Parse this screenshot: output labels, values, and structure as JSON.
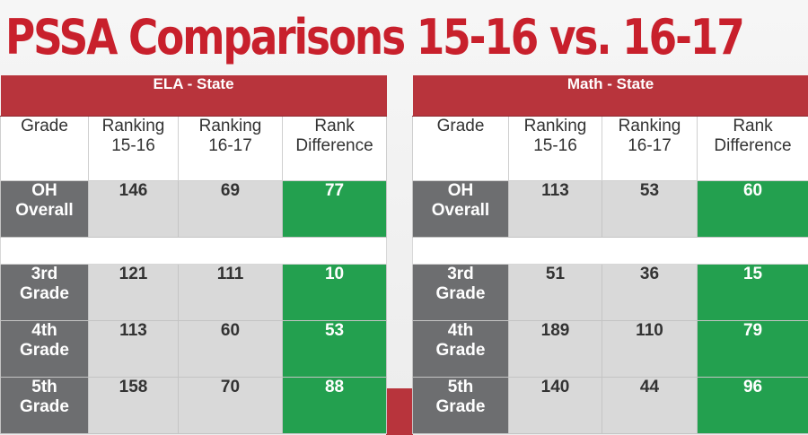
{
  "title": "PSSA Comparisons 15-16 vs. 16-17",
  "colors": {
    "header": "#b8343c",
    "grade": "#6d6e70",
    "value": "#d9d9d9",
    "difference": "#23a04f"
  },
  "columns": {
    "grade": "Grade",
    "r1516_a": "Ranking",
    "r1516_b": "15-16",
    "r1617_a": "Ranking",
    "r1617_b": "16-17",
    "diff_a": "Rank",
    "diff_b": "Difference"
  },
  "ela": {
    "heading": "ELA - State",
    "overall": {
      "g1": "OH",
      "g2": "Overall",
      "r1516": "146",
      "r1617": "69",
      "diff": "77"
    },
    "rows": [
      {
        "g1": "3rd",
        "g2": "Grade",
        "r1516": "121",
        "r1617": "111",
        "diff": "10"
      },
      {
        "g1": "4th",
        "g2": "Grade",
        "r1516": "113",
        "r1617": "60",
        "diff": "53"
      },
      {
        "g1": "5th",
        "g2": "Grade",
        "r1516": "158",
        "r1617": "70",
        "diff": "88"
      }
    ]
  },
  "math": {
    "heading": "Math - State",
    "overall": {
      "g1": "OH",
      "g2": "Overall",
      "r1516": "113",
      "r1617": "53",
      "diff": "60"
    },
    "rows": [
      {
        "g1": "3rd",
        "g2": "Grade",
        "r1516": "51",
        "r1617": "36",
        "diff": "15"
      },
      {
        "g1": "4th",
        "g2": "Grade",
        "r1516": "189",
        "r1617": "110",
        "diff": "79"
      },
      {
        "g1": "5th",
        "g2": "Grade",
        "r1516": "140",
        "r1617": "44",
        "diff": "96"
      }
    ]
  }
}
